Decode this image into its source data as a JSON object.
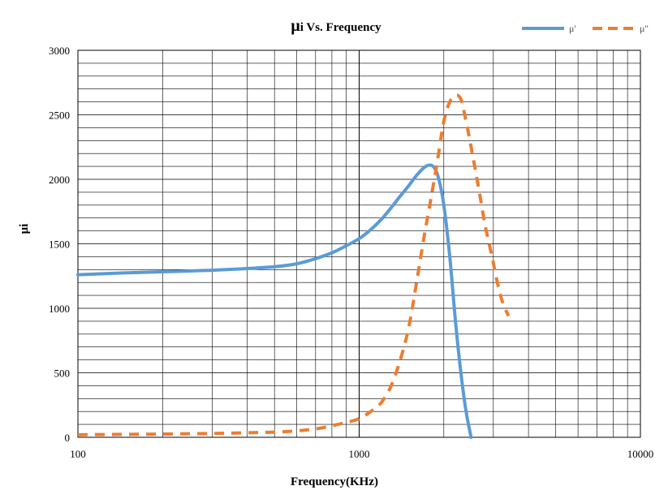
{
  "chart_data": {
    "type": "line",
    "title_prefix": "μ",
    "title": "i Vs. Frequency",
    "xlabel": "Frequency(KHz)",
    "ylabel": "μi",
    "xscale": "log",
    "xlim": [
      100,
      10000
    ],
    "ylim": [
      0,
      3000
    ],
    "x_ticks": [
      "100",
      "1000",
      "10000"
    ],
    "y_ticks": [
      "0",
      "500",
      "1000",
      "1500",
      "2000",
      "2500",
      "3000"
    ],
    "grid": true,
    "legend_position": "top-right",
    "series": [
      {
        "name": "μ'",
        "color": "#5B9BD5",
        "dash": "solid",
        "points": [
          [
            100,
            1260
          ],
          [
            150,
            1275
          ],
          [
            200,
            1283
          ],
          [
            300,
            1295
          ],
          [
            400,
            1308
          ],
          [
            500,
            1322
          ],
          [
            600,
            1345
          ],
          [
            700,
            1385
          ],
          [
            800,
            1430
          ],
          [
            900,
            1485
          ],
          [
            1000,
            1540
          ],
          [
            1100,
            1610
          ],
          [
            1200,
            1690
          ],
          [
            1300,
            1780
          ],
          [
            1400,
            1870
          ],
          [
            1500,
            1950
          ],
          [
            1600,
            2030
          ],
          [
            1700,
            2090
          ],
          [
            1780,
            2110
          ],
          [
            1850,
            2090
          ],
          [
            1920,
            2000
          ],
          [
            2000,
            1800
          ],
          [
            2100,
            1400
          ],
          [
            2200,
            900
          ],
          [
            2300,
            500
          ],
          [
            2400,
            200
          ],
          [
            2500,
            0
          ]
        ]
      },
      {
        "name": "μ''",
        "color": "#ED7D31",
        "dash": "dashed",
        "points": [
          [
            100,
            20
          ],
          [
            200,
            25
          ],
          [
            300,
            30
          ],
          [
            400,
            35
          ],
          [
            500,
            40
          ],
          [
            600,
            50
          ],
          [
            700,
            65
          ],
          [
            800,
            90
          ],
          [
            900,
            115
          ],
          [
            1000,
            145
          ],
          [
            1100,
            200
          ],
          [
            1200,
            270
          ],
          [
            1300,
            400
          ],
          [
            1400,
            600
          ],
          [
            1500,
            850
          ],
          [
            1600,
            1200
          ],
          [
            1700,
            1550
          ],
          [
            1800,
            1850
          ],
          [
            1900,
            2150
          ],
          [
            2000,
            2450
          ],
          [
            2100,
            2600
          ],
          [
            2200,
            2650
          ],
          [
            2300,
            2620
          ],
          [
            2400,
            2450
          ],
          [
            2500,
            2250
          ],
          [
            2600,
            2050
          ],
          [
            2700,
            1850
          ],
          [
            2800,
            1650
          ],
          [
            2900,
            1500
          ],
          [
            3000,
            1350
          ],
          [
            3100,
            1200
          ],
          [
            3200,
            1080
          ],
          [
            3300,
            1000
          ],
          [
            3400,
            940
          ]
        ]
      }
    ]
  }
}
